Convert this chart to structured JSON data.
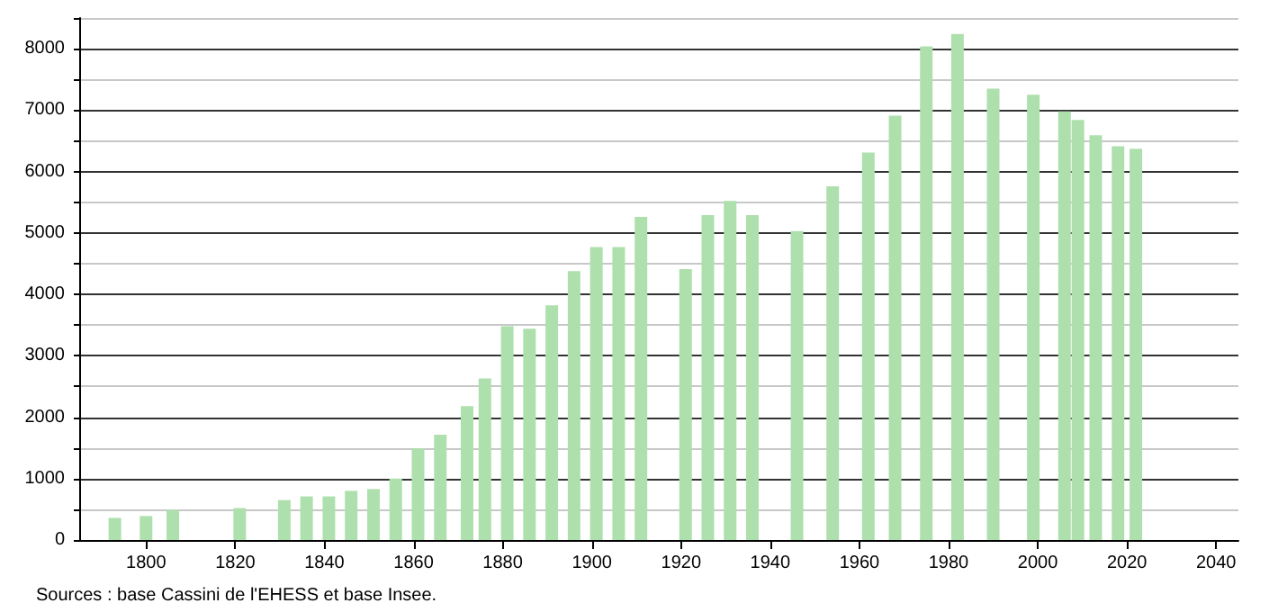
{
  "chart_data": {
    "type": "bar",
    "color": "#aee0ae",
    "x": [
      1793,
      1800,
      1806,
      1821,
      1831,
      1836,
      1841,
      1846,
      1851,
      1856,
      1861,
      1866,
      1872,
      1876,
      1881,
      1886,
      1891,
      1896,
      1901,
      1906,
      1911,
      1921,
      1926,
      1931,
      1936,
      1946,
      1954,
      1962,
      1968,
      1975,
      1982,
      1990,
      1999,
      2006,
      2009,
      2013,
      2018,
      2022
    ],
    "values": [
      360,
      390,
      490,
      520,
      650,
      710,
      710,
      800,
      830,
      1000,
      1490,
      1715,
      2180,
      2630,
      3480,
      3440,
      3820,
      4380,
      4770,
      4770,
      5260,
      4410,
      5290,
      5520,
      5290,
      5030,
      5760,
      6310,
      6910,
      8040,
      8240,
      7350,
      7250,
      6980,
      6840,
      6590,
      6410,
      6370
    ],
    "xlim": [
      1785,
      2045
    ],
    "xticks": [
      1800,
      1820,
      1840,
      1860,
      1880,
      1900,
      1920,
      1940,
      1960,
      1980,
      2000,
      2020,
      2040
    ],
    "ylim": [
      0,
      8500
    ],
    "yticks": [
      0,
      {
        "value": 500,
        "label": null
      },
      1000,
      {
        "value": 1500,
        "label": null
      },
      2000,
      {
        "value": 2500,
        "label": null
      },
      3000,
      {
        "value": 3500,
        "label": null
      },
      4000,
      {
        "value": 4500,
        "label": null
      },
      5000,
      {
        "value": 5500,
        "label": null
      },
      6000,
      {
        "value": 6500,
        "label": null
      },
      7000,
      {
        "value": 7500,
        "label": null
      },
      8000,
      {
        "value": 8500,
        "label": null
      }
    ],
    "grid": "y",
    "annotations": [
      "Sources : base Cassini de l'EHESS et base Insee."
    ]
  }
}
